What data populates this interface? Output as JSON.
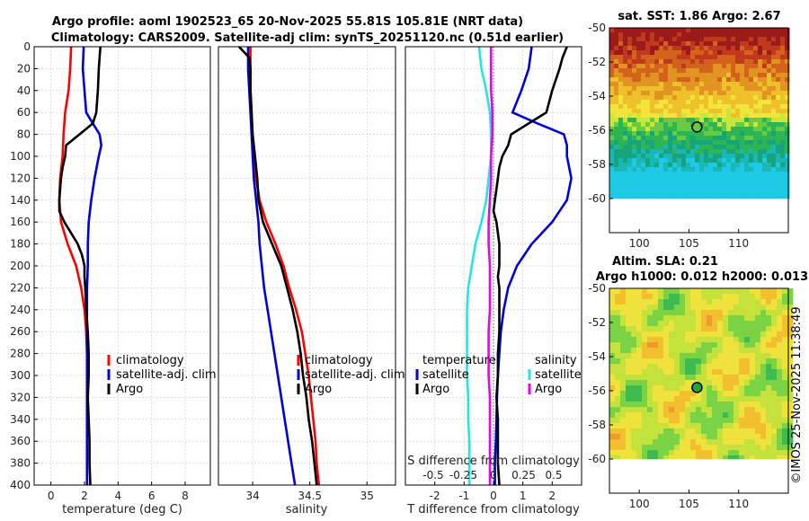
{
  "header": {
    "title_line1": "Argo profile: aoml 1902523_65 20-Nov-2025 55.81S 105.81E (NRT data)",
    "title_line2": "Climatology: CARS2009. Satellite-adj clim: synTS_20251120.nc (0.51d earlier)"
  },
  "colors": {
    "climatology": "#ff0000",
    "satellite": "#0000dd",
    "argo": "#000000",
    "sal_sat": "#22e6e6",
    "sal_argo": "#ee00ee"
  },
  "chart_data": [
    {
      "type": "line",
      "name": "temperature",
      "xlabel": "temperature (deg C)",
      "xlim": [
        -1,
        9.5
      ],
      "xticks": [
        "0",
        "2",
        "4",
        "6",
        "8"
      ],
      "ylim": [
        0,
        400
      ],
      "yticks": [
        "0",
        "20",
        "40",
        "60",
        "80",
        "100",
        "120",
        "140",
        "160",
        "180",
        "200",
        "220",
        "240",
        "260",
        "280",
        "300",
        "320",
        "340",
        "360",
        "380",
        "400"
      ],
      "legend": [
        "climatology",
        "satellite-adj. clim",
        "Argo"
      ],
      "series": [
        {
          "name": "climatology",
          "depth": [
            0,
            20,
            40,
            60,
            80,
            100,
            120,
            140,
            160,
            180,
            200,
            220,
            240,
            260,
            280,
            300,
            320,
            340,
            360,
            380,
            400
          ],
          "values": [
            1.2,
            1.15,
            1.05,
            0.85,
            0.75,
            0.7,
            0.55,
            0.5,
            0.6,
            1.0,
            1.5,
            1.8,
            2.0,
            2.1,
            2.15,
            2.15,
            2.15,
            2.15,
            2.15,
            2.15,
            2.15
          ]
        },
        {
          "name": "satellite-adj. clim",
          "depth": [
            0,
            20,
            40,
            60,
            70,
            80,
            90,
            100,
            120,
            140,
            160,
            180,
            200,
            220,
            240,
            260,
            280,
            300,
            320,
            340,
            360,
            380,
            400
          ],
          "values": [
            1.95,
            1.9,
            2.0,
            2.1,
            2.5,
            2.9,
            3.0,
            2.85,
            2.6,
            2.4,
            2.25,
            2.2,
            2.2,
            2.15,
            2.15,
            2.15,
            2.15,
            2.15,
            2.15,
            2.15,
            2.15,
            2.15,
            2.15
          ]
        },
        {
          "name": "Argo",
          "depth": [
            0,
            10,
            20,
            40,
            60,
            70,
            80,
            90,
            100,
            110,
            120,
            130,
            140,
            150,
            160,
            170,
            180,
            190,
            200,
            210,
            220,
            240,
            260,
            280,
            300,
            320,
            340,
            360,
            380,
            400
          ],
          "values": [
            2.95,
            2.9,
            2.85,
            2.8,
            2.7,
            2.5,
            1.7,
            0.9,
            0.85,
            0.7,
            0.6,
            0.55,
            0.5,
            0.5,
            0.8,
            1.2,
            1.6,
            1.85,
            2.0,
            2.0,
            2.05,
            2.1,
            2.2,
            2.25,
            2.25,
            2.2,
            2.25,
            2.3,
            2.3,
            2.35
          ]
        }
      ]
    },
    {
      "type": "line",
      "name": "salinity",
      "xlabel": "salinity",
      "xlim": [
        33.7,
        35.25
      ],
      "xticks": [
        "34",
        "34.5",
        "35"
      ],
      "ylim": [
        0,
        400
      ],
      "legend": [
        "climatology",
        "satellite-adj. clim",
        "Argo"
      ],
      "series": [
        {
          "name": "climatology",
          "depth": [
            0,
            20,
            40,
            60,
            80,
            100,
            120,
            140,
            160,
            180,
            200,
            220,
            240,
            260,
            280,
            300,
            320,
            340,
            360,
            380,
            400
          ],
          "values": [
            33.98,
            33.98,
            33.98,
            33.99,
            33.99,
            34.01,
            34.03,
            34.06,
            34.12,
            34.2,
            34.27,
            34.32,
            34.38,
            34.43,
            34.46,
            34.49,
            34.51,
            34.53,
            34.55,
            34.56,
            34.58
          ]
        },
        {
          "name": "satellite-adj. clim",
          "depth": [
            0,
            20,
            40,
            60,
            80,
            100,
            120,
            140,
            160,
            180,
            200,
            220,
            240,
            260,
            280,
            300,
            320,
            340,
            360,
            380,
            400
          ],
          "values": [
            33.96,
            33.96,
            33.97,
            33.98,
            33.99,
            34.0,
            34.01,
            34.03,
            34.05,
            34.06,
            34.08,
            34.1,
            34.13,
            34.16,
            34.19,
            34.22,
            34.25,
            34.28,
            34.31,
            34.34,
            34.37
          ]
        },
        {
          "name": "Argo",
          "depth": [
            0,
            10,
            20,
            40,
            60,
            80,
            100,
            120,
            140,
            160,
            180,
            200,
            220,
            240,
            260,
            280,
            300,
            320,
            340,
            360,
            380,
            400
          ],
          "values": [
            33.88,
            33.97,
            33.98,
            33.98,
            33.99,
            34.0,
            34.02,
            34.04,
            34.05,
            34.09,
            34.17,
            34.25,
            34.3,
            34.35,
            34.39,
            34.42,
            34.44,
            34.47,
            34.49,
            34.52,
            34.54,
            34.56
          ]
        }
      ]
    },
    {
      "type": "line",
      "name": "difference",
      "xlabel": "T difference from climatology",
      "xlabel_top": "S difference from climatology",
      "xlim": [
        -3,
        3
      ],
      "xticks": [
        "-2",
        "-1",
        "0",
        "1",
        "2"
      ],
      "xticks_top": [
        "-0.5",
        "-0.25",
        "0",
        "0.25",
        "0.5"
      ],
      "ylim": [
        0,
        400
      ],
      "legend_left": [
        "temperature",
        "satellite",
        "Argo"
      ],
      "legend_right": [
        "salinity",
        "satellite",
        "Argo"
      ],
      "series": [
        {
          "name": "T satellite",
          "depth": [
            0,
            20,
            40,
            60,
            70,
            80,
            90,
            100,
            120,
            140,
            160,
            180,
            200,
            220,
            240,
            260,
            280,
            300,
            320,
            340,
            360,
            380,
            400
          ],
          "values": [
            1.3,
            1.2,
            0.95,
            0.65,
            1.5,
            2.4,
            2.5,
            2.5,
            2.65,
            2.5,
            2.0,
            1.3,
            0.8,
            0.5,
            0.35,
            0.25,
            0.2,
            0.15,
            0.12,
            0.1,
            0.08,
            0.05,
            0.05
          ]
        },
        {
          "name": "T Argo",
          "depth": [
            0,
            10,
            20,
            40,
            60,
            70,
            80,
            90,
            100,
            110,
            120,
            130,
            140,
            150,
            160,
            170,
            180,
            190,
            200,
            210,
            220,
            240,
            260,
            280,
            300,
            320,
            340,
            360,
            380,
            400
          ],
          "values": [
            2.5,
            2.35,
            2.25,
            2.0,
            1.8,
            1.2,
            0.6,
            0.5,
            0.3,
            0.2,
            0.15,
            0.1,
            0.05,
            0.0,
            0.1,
            0.15,
            0.2,
            0.2,
            0.2,
            0.15,
            0.2,
            0.2,
            0.2,
            0.15,
            0.15,
            0.1,
            0.15,
            0.15,
            0.15,
            0.2
          ]
        },
        {
          "name": "S satellite",
          "depth": [
            0,
            20,
            40,
            60,
            80,
            100,
            120,
            140,
            160,
            180,
            200,
            220,
            240,
            260,
            280,
            300,
            320,
            340,
            360,
            380,
            400
          ],
          "values": [
            -0.12,
            -0.1,
            -0.06,
            -0.03,
            -0.02,
            -0.02,
            -0.04,
            -0.06,
            -0.1,
            -0.15,
            -0.18,
            -0.21,
            -0.22,
            -0.22,
            -0.22,
            -0.22,
            -0.21,
            -0.21,
            -0.2,
            -0.2,
            -0.2
          ]
        },
        {
          "name": "S Argo",
          "depth": [
            0,
            20,
            40,
            60,
            80,
            100,
            120,
            140,
            160,
            180,
            200,
            220,
            240,
            260,
            280,
            300,
            320,
            340,
            360,
            380,
            400
          ],
          "values": [
            -0.02,
            -0.02,
            -0.02,
            -0.01,
            -0.01,
            -0.02,
            -0.02,
            -0.03,
            -0.04,
            -0.04,
            -0.03,
            -0.03,
            -0.03,
            -0.04,
            -0.04,
            -0.04,
            -0.03,
            -0.03,
            -0.03,
            -0.03,
            -0.03
          ]
        }
      ]
    },
    {
      "type": "heatmap",
      "name": "sst-map",
      "title": "sat. SST: 1.86 Argo: 2.67",
      "xlim": [
        97,
        115
      ],
      "ylim": [
        -62,
        -50
      ],
      "xticks": [
        "100",
        "105",
        "110"
      ],
      "yticks": [
        "-50",
        "-52",
        "-54",
        "-56",
        "-58",
        "-60"
      ],
      "argo_lon": 105.81,
      "argo_lat": -55.81
    },
    {
      "type": "heatmap",
      "name": "sla-map",
      "title_line1": "Altim. SLA: 0.21",
      "title_line2": "Argo h1000: 0.012 h2000: 0.013",
      "xlim": [
        97,
        115
      ],
      "ylim": [
        -62,
        -50
      ],
      "xticks": [
        "100",
        "105",
        "110"
      ],
      "yticks": [
        "-50",
        "-52",
        "-54",
        "-56",
        "-58",
        "-60"
      ],
      "argo_lon": 105.81,
      "argo_lat": -55.81
    }
  ],
  "footer": {
    "watermark": "©IMOS 25-Nov-2025 11:38:49"
  }
}
